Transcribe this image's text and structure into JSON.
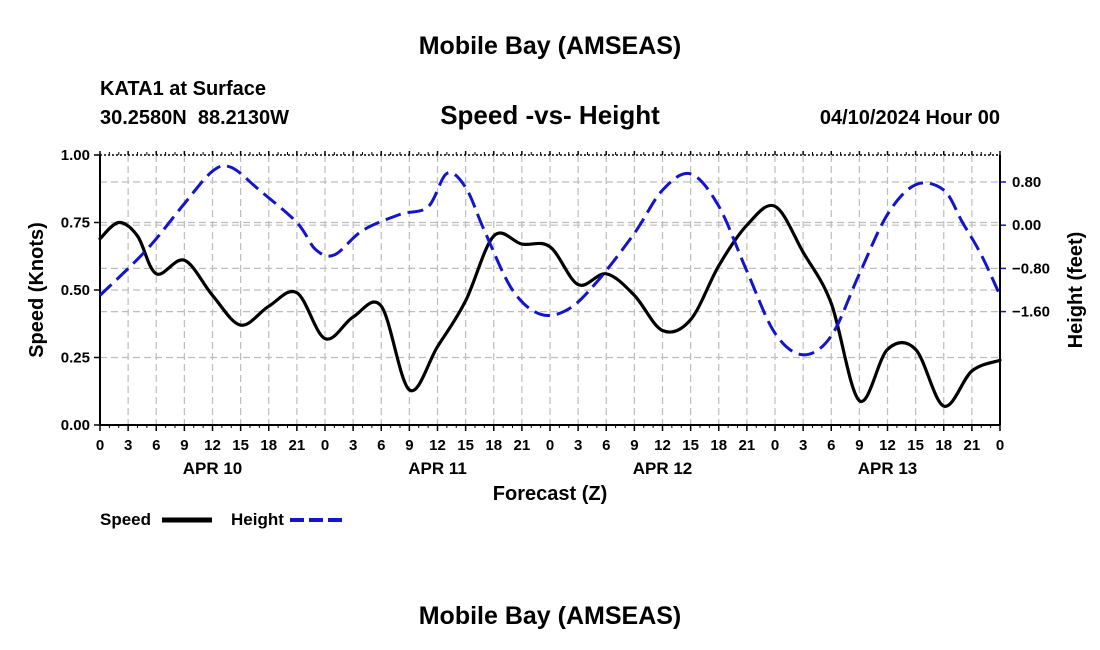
{
  "top_title": "Mobile Bay (AMSEAS)",
  "bottom_title": "Mobile Bay (AMSEAS)",
  "station": "KATA1 at Surface",
  "coords": "30.2580N  88.2130W",
  "datetime": "04/10/2024 Hour 00",
  "chart_data": {
    "type": "line",
    "title": "Speed -vs- Height",
    "xlabel": "Forecast (Z)",
    "ylabel": "Speed (Knots)",
    "y2label": "Height (feet)",
    "xlim": [
      0,
      96
    ],
    "ylim": [
      0,
      1.0
    ],
    "y2lim": [
      -3.7,
      1.3
    ],
    "x_ticks": [
      0,
      3,
      6,
      9,
      12,
      15,
      18,
      21,
      24,
      27,
      30,
      33,
      36,
      39,
      42,
      45,
      48,
      51,
      54,
      57,
      60,
      63,
      66,
      69,
      72,
      75,
      78,
      81,
      84,
      87,
      90,
      93,
      96
    ],
    "x_tick_labels": [
      "0",
      "3",
      "6",
      "9",
      "12",
      "15",
      "18",
      "21",
      "0",
      "3",
      "6",
      "9",
      "12",
      "15",
      "18",
      "21",
      "0",
      "3",
      "6",
      "9",
      "12",
      "15",
      "18",
      "21",
      "0",
      "3",
      "6",
      "9",
      "12",
      "15",
      "18",
      "21",
      "0"
    ],
    "date_labels": [
      {
        "x": 12,
        "label": "APR 10"
      },
      {
        "x": 36,
        "label": "APR 11"
      },
      {
        "x": 60,
        "label": "APR 12"
      },
      {
        "x": 84,
        "label": "APR 13"
      }
    ],
    "y_ticks": [
      0.0,
      0.25,
      0.5,
      0.75,
      1.0
    ],
    "y_tick_labels": [
      "0.00",
      "0.25",
      "0.50",
      "0.75",
      "1.00"
    ],
    "y2_ticks": [
      0.8,
      0.0,
      -0.8,
      -1.6
    ],
    "y2_tick_labels": [
      "0.80",
      "0.00",
      "−0.80",
      "−1.60"
    ],
    "grid": true,
    "legend_position": "bottom-left",
    "series": [
      {
        "name": "Speed",
        "axis": "left",
        "color": "#000000",
        "style": "solid",
        "x": [
          0,
          2,
          4,
          6,
          9,
          12,
          15,
          18,
          21,
          24,
          27,
          30,
          33,
          36,
          39,
          42,
          45,
          48,
          51,
          54,
          57,
          60,
          63,
          66,
          69,
          72,
          75,
          78,
          81,
          84,
          87,
          90,
          93,
          96
        ],
        "values": [
          0.69,
          0.75,
          0.7,
          0.56,
          0.61,
          0.48,
          0.37,
          0.44,
          0.49,
          0.32,
          0.4,
          0.44,
          0.13,
          0.29,
          0.46,
          0.7,
          0.67,
          0.66,
          0.52,
          0.56,
          0.48,
          0.35,
          0.39,
          0.59,
          0.74,
          0.81,
          0.64,
          0.45,
          0.09,
          0.28,
          0.28,
          0.07,
          0.2,
          0.24
        ]
      },
      {
        "name": "Height",
        "axis": "right",
        "color": "#1414c8",
        "style": "dashed",
        "x": [
          0,
          5,
          9,
          12,
          14,
          17,
          21,
          23,
          25,
          28,
          32,
          35,
          37,
          39,
          41,
          44,
          47,
          50,
          53,
          57,
          60,
          63,
          66,
          69,
          72,
          75,
          78,
          81,
          84,
          87,
          90,
          92,
          94,
          96
        ],
        "values": [
          -1.3,
          -0.45,
          0.4,
          1.0,
          1.07,
          0.65,
          0.05,
          -0.45,
          -0.55,
          -0.1,
          0.2,
          0.34,
          0.96,
          0.7,
          -0.1,
          -1.2,
          -1.65,
          -1.55,
          -1.05,
          -0.15,
          0.65,
          0.95,
          0.35,
          -0.85,
          -2.0,
          -2.4,
          -2.05,
          -0.9,
          0.2,
          0.75,
          0.65,
          0.05,
          -0.55,
          -1.3
        ]
      }
    ]
  }
}
